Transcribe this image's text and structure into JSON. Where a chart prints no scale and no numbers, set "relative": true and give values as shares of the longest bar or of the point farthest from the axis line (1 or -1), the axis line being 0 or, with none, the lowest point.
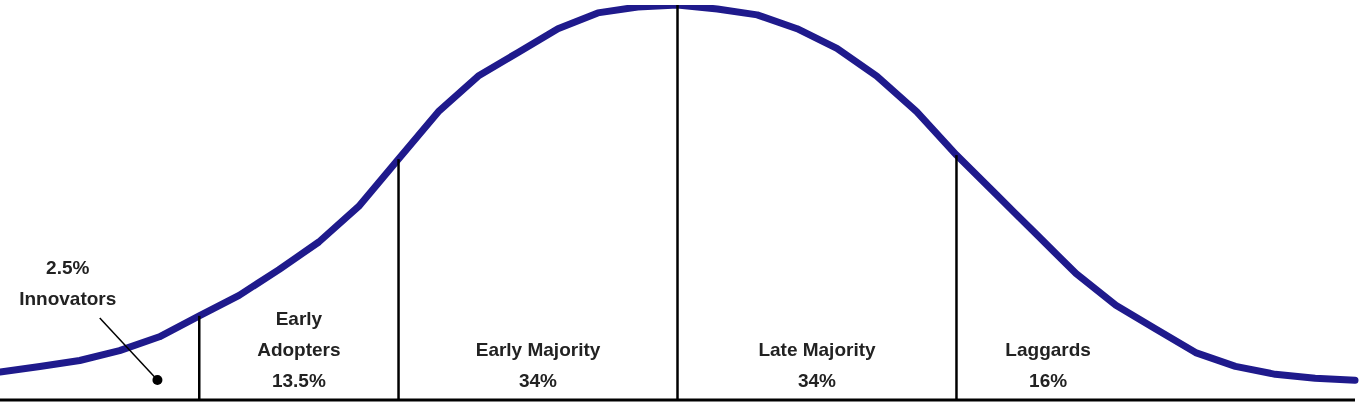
{
  "chart_data": {
    "type": "line",
    "relative": true,
    "categories": [
      null,
      null,
      null,
      null,
      null,
      null,
      null,
      null,
      null,
      null,
      null,
      null,
      null,
      null,
      null,
      null,
      null,
      null,
      null,
      null,
      null,
      null,
      null,
      null,
      null,
      null,
      null,
      null,
      null,
      null,
      null,
      null,
      null,
      null,
      null
    ],
    "series": [
      {
        "color": "#1f1a8c",
        "values": [
          0.071,
          0.085,
          0.1,
          0.125,
          0.16,
          0.213,
          0.265,
          0.33,
          0.4,
          0.49,
          0.61,
          0.73,
          0.82,
          0.88,
          0.94,
          0.98,
          0.995,
          1,
          0.99,
          0.975,
          0.94,
          0.89,
          0.82,
          0.73,
          0.62,
          0.52,
          0.42,
          0.32,
          0.24,
          0.18,
          0.12,
          0.085,
          0.065,
          0.055,
          0.05
        ]
      }
    ],
    "annotations": [
      "2.5%\nInnovators",
      "Early\nAdopters\n13.5%",
      "Early Majority\n34%",
      "Late Majority\n34%",
      "Laggards\n16%"
    ]
  }
}
